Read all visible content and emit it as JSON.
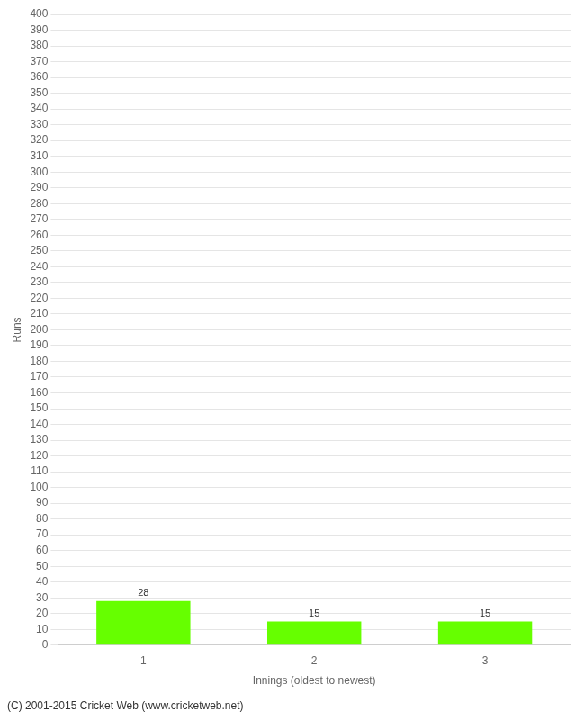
{
  "chart_data": {
    "type": "bar",
    "categories": [
      "1",
      "2",
      "3"
    ],
    "values": [
      28,
      15,
      15
    ],
    "color": "#66ff00",
    "xlabel": "Innings (oldest to newest)",
    "ylabel": "Runs",
    "annotations": [
      "(C) 2001-2015 Cricket Web (www.cricketweb.net)"
    ],
    "ylim": [
      0,
      400
    ],
    "yticks": [
      0,
      10,
      20,
      30,
      40,
      50,
      60,
      70,
      80,
      90,
      100,
      110,
      120,
      130,
      140,
      150,
      160,
      170,
      180,
      190,
      200,
      210,
      220,
      230,
      240,
      250,
      260,
      270,
      280,
      290,
      300,
      310,
      320,
      330,
      340,
      350,
      360,
      370,
      380,
      390,
      400
    ],
    "grid": true,
    "data_labels": true
  }
}
